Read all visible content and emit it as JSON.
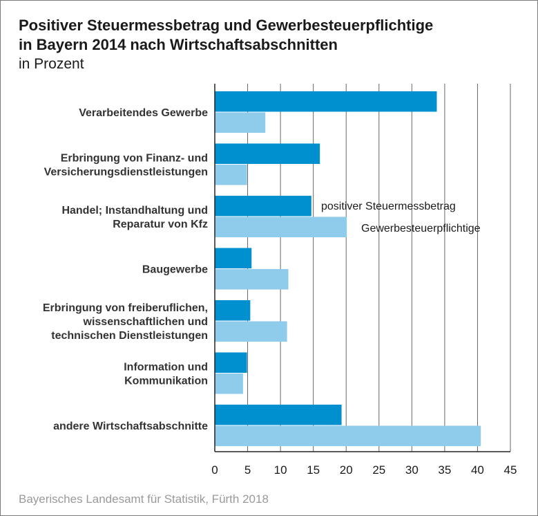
{
  "title_line1": "Positiver Steuermessbetrag und Gewerbesteuerpflichtige",
  "title_line2": "in Bayern 2014 nach Wirtschaftsabschnitten",
  "subtitle": "in Prozent",
  "source": "Bayerisches Landesamt für Statistik, Fürth 2018",
  "colors": {
    "steuermessbetrag": "#0090d0",
    "gewerbesteuerpflichtige": "#8fcbea",
    "grid": "#666666",
    "text": "#333333"
  },
  "chart_data": {
    "type": "bar",
    "orientation": "horizontal",
    "title": "Positiver Steuermessbetrag und Gewerbesteuerpflichtige in Bayern 2014 nach Wirtschaftsabschnitten",
    "ylabel": "",
    "xlabel": "",
    "unit": "in Prozent",
    "xlim": [
      0,
      45
    ],
    "xticks": [
      0,
      5,
      10,
      15,
      20,
      25,
      30,
      35,
      40,
      45
    ],
    "grid": true,
    "categories": [
      [
        "Verarbeitendes Gewerbe"
      ],
      [
        "Erbringung von Finanz- und",
        "Versicherungsdienstleistungen"
      ],
      [
        "Handel; Instandhaltung und",
        "Reparatur von Kfz"
      ],
      [
        "Baugewerbe"
      ],
      [
        "Erbringung von freiberuflichen,",
        "wissenschaftlichen und",
        "technischen Dienstleistungen"
      ],
      [
        "Information und",
        "Kommunikation"
      ],
      [
        "andere Wirtschaftsabschnitte"
      ]
    ],
    "series": [
      {
        "name": "positiver Steuermessbetrag",
        "values": [
          33.8,
          16.0,
          14.7,
          5.6,
          5.4,
          4.9,
          19.3
        ]
      },
      {
        "name": "Gewerbesteuerpflichtige",
        "values": [
          7.7,
          4.9,
          20.1,
          11.2,
          11.0,
          4.3,
          40.5
        ]
      }
    ]
  }
}
